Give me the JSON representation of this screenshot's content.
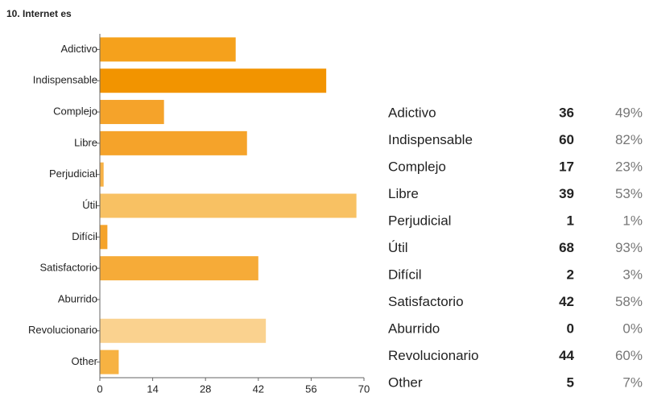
{
  "chart_data": {
    "type": "hbar",
    "title": "10. Internet es",
    "categories": [
      "Adictivo",
      "Indispensable",
      "Complejo",
      "Libre",
      "Perjudicial",
      "Útil",
      "Difícil",
      "Satisfactorio",
      "Aburrido",
      "Revolucionario",
      "Other"
    ],
    "values": [
      36,
      60,
      17,
      39,
      1,
      68,
      2,
      42,
      0,
      44,
      5
    ],
    "colors": [
      "#f5a11c",
      "#f29400",
      "#f5a32a",
      "#f5a32a",
      "#f8b245",
      "#f8c163",
      "#f5a32a",
      "#f6ab38",
      "#f6ab38",
      "#fad28f",
      "#f7b242"
    ],
    "percents": [
      "49%",
      "82%",
      "23%",
      "53%",
      "1%",
      "93%",
      "3%",
      "58%",
      "0%",
      "60%",
      "7%"
    ],
    "xlim": [
      0,
      70
    ],
    "xticks": [
      0,
      14,
      28,
      42,
      56,
      70
    ]
  }
}
